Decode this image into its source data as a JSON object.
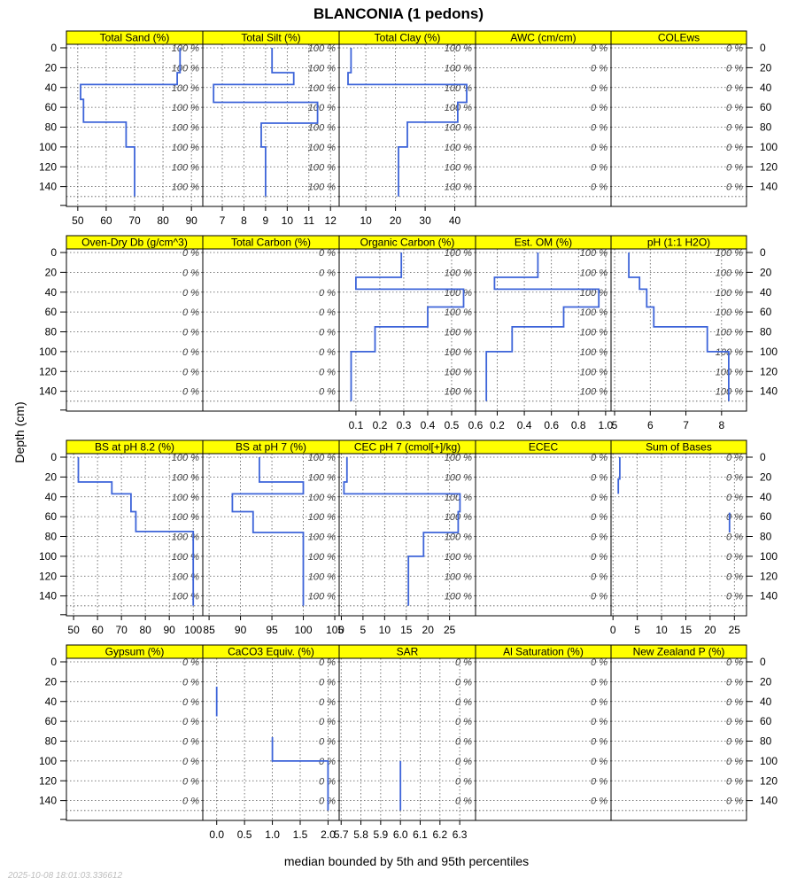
{
  "figure": {
    "title": "BLANCONIA (1 pedons)",
    "ylabel": "Depth (cm)",
    "xlabel": "median bounded by 5th and 95th percentiles",
    "timestamp": "2025-10-08 18:01:03.336612"
  },
  "chart_data": {
    "type": "line",
    "title": "BLANCONIA (1 pedons)",
    "ylabel": "Depth (cm)",
    "xlabel": "median bounded by 5th and 95th percentiles",
    "depth_ticks": [
      0,
      20,
      40,
      60,
      80,
      100,
      120,
      140
    ],
    "ylim": [
      0,
      160
    ],
    "grid": true,
    "colors": {
      "strip": "#ffff00",
      "line": "#3d64d9",
      "grid": "#555555",
      "label": "#444444"
    },
    "panels": [
      {
        "name": "Total Sand (%)",
        "xticks": [
          50,
          60,
          70,
          80,
          90
        ],
        "xlim": [
          46,
          94
        ],
        "pct": "100 %",
        "series": [
          [
            86,
            0
          ],
          [
            86,
            25
          ],
          [
            85,
            25
          ],
          [
            85,
            37
          ],
          [
            51,
            37
          ],
          [
            51,
            52
          ],
          [
            52,
            52
          ],
          [
            52,
            55
          ],
          [
            52,
            75
          ],
          [
            67,
            75
          ],
          [
            67,
            100
          ],
          [
            70,
            100
          ],
          [
            70,
            150
          ]
        ]
      },
      {
        "name": "Total Silt (%)",
        "xticks": [
          7,
          8,
          9,
          10,
          11,
          12
        ],
        "xlim": [
          6.1,
          12.4
        ],
        "pct": "100 %",
        "series": [
          [
            9.3,
            0
          ],
          [
            9.3,
            25
          ],
          [
            10.3,
            25
          ],
          [
            10.3,
            37
          ],
          [
            6.6,
            37
          ],
          [
            6.6,
            55
          ],
          [
            11.4,
            55
          ],
          [
            11.4,
            76
          ],
          [
            8.8,
            76
          ],
          [
            8.8,
            100
          ],
          [
            9,
            100
          ],
          [
            9,
            150
          ]
        ]
      },
      {
        "name": "Total Clay (%)",
        "xticks": [
          10,
          20,
          30,
          40
        ],
        "xlim": [
          1,
          47
        ],
        "pct": "100 %",
        "series": [
          [
            5,
            0
          ],
          [
            5,
            25
          ],
          [
            4,
            25
          ],
          [
            4,
            37
          ],
          [
            44,
            37
          ],
          [
            44,
            55
          ],
          [
            41,
            55
          ],
          [
            41,
            75
          ],
          [
            24,
            75
          ],
          [
            24,
            100
          ],
          [
            21,
            100
          ],
          [
            21,
            150
          ]
        ]
      },
      {
        "name": "AWC (cm/cm)",
        "xticks": [],
        "xlim": [
          0,
          1
        ],
        "pct": "0 %",
        "series": []
      },
      {
        "name": "COLEws",
        "xticks": [],
        "xlim": [
          0,
          1
        ],
        "pct": "0 %",
        "series": []
      },
      {
        "name": "Oven-Dry Db (g/cm^3)",
        "xticks": [],
        "xlim": [
          0,
          1
        ],
        "pct": "0 %",
        "series": []
      },
      {
        "name": "Total Carbon (%)",
        "xticks": [],
        "xlim": [
          0,
          1
        ],
        "pct": "0 %",
        "series": []
      },
      {
        "name": "Organic Carbon (%)",
        "xticks": [
          0.1,
          0.2,
          0.3,
          0.4,
          0.5,
          0.6
        ],
        "xlim": [
          0.03,
          0.6
        ],
        "pct": "100 %",
        "series": [
          [
            0.29,
            0
          ],
          [
            0.29,
            25
          ],
          [
            0.1,
            25
          ],
          [
            0.1,
            37
          ],
          [
            0.55,
            37
          ],
          [
            0.55,
            55
          ],
          [
            0.4,
            55
          ],
          [
            0.4,
            75
          ],
          [
            0.18,
            75
          ],
          [
            0.18,
            100
          ],
          [
            0.08,
            100
          ],
          [
            0.08,
            150
          ]
        ]
      },
      {
        "name": "Est. OM (%)",
        "xticks": [
          0.2,
          0.4,
          0.6,
          0.8,
          1.0
        ],
        "xlim": [
          0.04,
          1.04
        ],
        "pct": "100 %",
        "series": [
          [
            0.5,
            0
          ],
          [
            0.5,
            25
          ],
          [
            0.18,
            25
          ],
          [
            0.18,
            37
          ],
          [
            0.95,
            37
          ],
          [
            0.95,
            55
          ],
          [
            0.69,
            55
          ],
          [
            0.69,
            75
          ],
          [
            0.31,
            75
          ],
          [
            0.31,
            100
          ],
          [
            0.12,
            100
          ],
          [
            0.12,
            150
          ]
        ]
      },
      {
        "name": "pH (1:1 H2O)",
        "xticks": [
          5,
          6,
          7,
          8
        ],
        "xlim": [
          4.9,
          8.7
        ],
        "pct": "100 %",
        "series": [
          [
            5.4,
            0
          ],
          [
            5.4,
            25
          ],
          [
            5.7,
            25
          ],
          [
            5.7,
            37
          ],
          [
            5.9,
            37
          ],
          [
            5.9,
            55
          ],
          [
            6.1,
            55
          ],
          [
            6.1,
            75
          ],
          [
            7.6,
            75
          ],
          [
            7.6,
            100
          ],
          [
            8.2,
            100
          ],
          [
            8.2,
            150
          ]
        ]
      },
      {
        "name": "BS at pH 8.2 (%)",
        "xticks": [
          50,
          60,
          70,
          80,
          90,
          100
        ],
        "xlim": [
          47,
          104
        ],
        "pct": "100 %",
        "series": [
          [
            52,
            0
          ],
          [
            52,
            25
          ],
          [
            66,
            25
          ],
          [
            66,
            37
          ],
          [
            74,
            37
          ],
          [
            74,
            55
          ],
          [
            76,
            55
          ],
          [
            76,
            75
          ],
          [
            100,
            75
          ],
          [
            100,
            150
          ]
        ]
      },
      {
        "name": "BS at pH 7 (%)",
        "xticks": [
          85,
          90,
          95,
          100,
          105
        ],
        "xlim": [
          84,
          105.7
        ],
        "pct": "100 %",
        "series": [
          [
            93,
            0
          ],
          [
            93,
            25
          ],
          [
            100,
            25
          ],
          [
            100,
            37
          ],
          [
            88.7,
            37
          ],
          [
            88.7,
            55
          ],
          [
            92,
            55
          ],
          [
            92,
            76
          ],
          [
            100,
            76
          ],
          [
            100,
            150
          ]
        ]
      },
      {
        "name": "CEC pH 7 (cmol[+]/kg)",
        "xticks": [
          0,
          5,
          10,
          15,
          20,
          25
        ],
        "xlim": [
          -0.5,
          31
        ],
        "pct": "100 %",
        "series": [
          [
            1.3,
            0
          ],
          [
            1.3,
            25
          ],
          [
            0.6,
            25
          ],
          [
            0.6,
            37
          ],
          [
            27.4,
            37
          ],
          [
            27.4,
            55
          ],
          [
            27,
            55
          ],
          [
            27,
            76
          ],
          [
            19,
            76
          ],
          [
            19,
            100
          ],
          [
            15.5,
            100
          ],
          [
            15.5,
            150
          ]
        ]
      },
      {
        "name": "ECEC",
        "xticks": [],
        "xlim": [
          0,
          1
        ],
        "pct": "0 %",
        "series": []
      },
      {
        "name": "Sum of Bases",
        "xticks": [
          0,
          5,
          10,
          15,
          20,
          25
        ],
        "xlim": [
          -0.4,
          27.5
        ],
        "pct": "0 %",
        "series": [
          [
            1.4,
            0
          ],
          [
            1.4,
            22
          ],
          [
            1.1,
            22
          ],
          [
            1.1,
            37
          ]
        ],
        "series_b": [
          [
            24,
            56
          ],
          [
            24,
            76
          ]
        ]
      },
      {
        "name": "Gypsum (%)",
        "xticks": [],
        "xlim": [
          0,
          1
        ],
        "pct": "0 %",
        "series": []
      },
      {
        "name": "CaCO3 Equiv. (%)",
        "xticks": [
          0.0,
          0.5,
          1.0,
          1.5,
          2.0
        ],
        "xlim": [
          -0.25,
          2.2
        ],
        "pct": "0 %",
        "series": [
          [
            1,
            76
          ],
          [
            1,
            100
          ],
          [
            2,
            100
          ],
          [
            2,
            150
          ]
        ],
        "series_b": [
          [
            0,
            25
          ],
          [
            0,
            55
          ]
        ]
      },
      {
        "name": "SAR",
        "xticks": [
          5.7,
          5.8,
          5.9,
          6.0,
          6.1,
          6.2,
          6.3
        ],
        "xlim": [
          5.69,
          6.38
        ],
        "pct": "0 %",
        "series": [
          [
            6,
            100
          ],
          [
            6,
            150
          ]
        ]
      },
      {
        "name": "Al Saturation (%)",
        "xticks": [],
        "xlim": [
          0,
          1
        ],
        "pct": "0 %",
        "series": []
      },
      {
        "name": "New Zealand P (%)",
        "xticks": [],
        "xlim": [
          0,
          1
        ],
        "pct": "0 %",
        "series": []
      }
    ]
  }
}
